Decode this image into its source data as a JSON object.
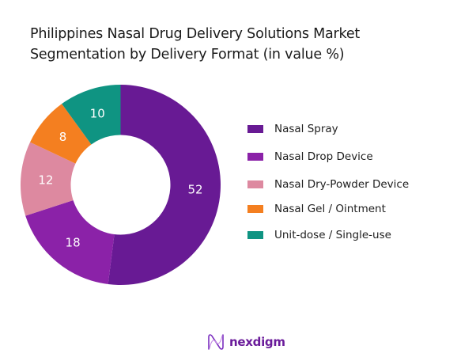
{
  "title": {
    "line1": "Philippines Nasal Drug Delivery Solutions Market",
    "line2": "Segmentation by Delivery Format (in value %)"
  },
  "chart_data": {
    "type": "pie",
    "subtype": "donut",
    "title": "Philippines Nasal Drug Delivery Solutions Market Segmentation by Delivery Format (in value %)",
    "categories": [
      "Nasal Spray",
      "Nasal Drop Device",
      "Nasal Dry-Powder Device",
      "Nasal Gel / Ointment",
      "Unit-dose / Single-use"
    ],
    "values": [
      52,
      18,
      12,
      8,
      10
    ],
    "colors": [
      "#681a94",
      "#8b22a8",
      "#dd89a0",
      "#f47f20",
      "#0f9482"
    ],
    "data_labels": [
      "52",
      "18",
      "12",
      "8",
      "10"
    ],
    "legend_position": "right",
    "start_angle_deg": 0,
    "direction": "clockwise"
  },
  "legend": {
    "items": [
      {
        "label": "Nasal Spray",
        "color": "#681a94"
      },
      {
        "label": "Nasal Drop Device",
        "color": "#8b22a8"
      },
      {
        "label": "Nasal Dry-Powder Device",
        "color": "#dd89a0"
      },
      {
        "label": "Nasal Gel / Ointment",
        "color": "#f47f20"
      },
      {
        "label": "Unit-dose / Single-use",
        "color": "#0f9482"
      }
    ]
  },
  "logo": {
    "text": "nexdigm",
    "icon": "nexdigm-wave-logo-icon"
  }
}
